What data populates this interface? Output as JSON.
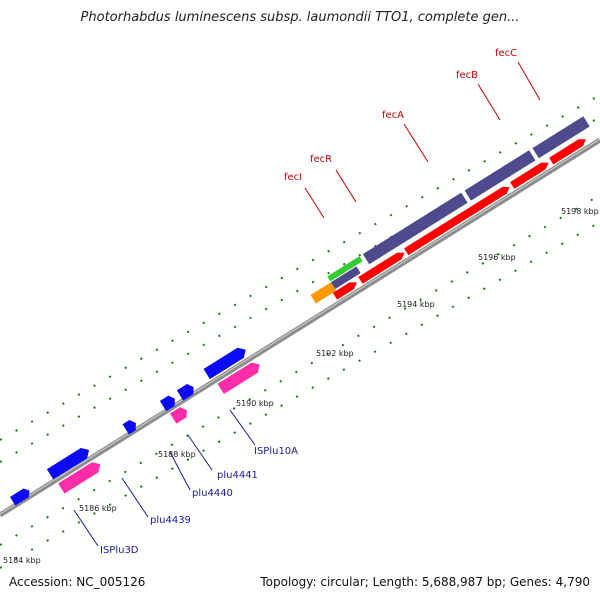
{
  "title": "Photorhabdus luminescens subsp. laumondii TTO1, complete gen...",
  "footer": {
    "accession": "Accession: NC_005126",
    "summary": "Topology: circular; Length: 5,688,987 bp; Genes: 4,790"
  },
  "scale_labels": [
    "5184 kbp",
    "5186 kbp",
    "5188 kbp",
    "5190 kbp",
    "5192 kbp",
    "5194 kbp",
    "5196 kbp",
    "5198 kbp"
  ],
  "gene_labels": {
    "fecI": "fecI",
    "fecR": "fecR",
    "fecA": "fecA",
    "fecB": "fecB",
    "fecC": "fecC",
    "ISPlu10A": "ISPlu10A",
    "plu4441": "plu4441",
    "plu4440": "plu4440",
    "plu4439": "plu4439",
    "ISPlu3D": "ISPlu3D"
  },
  "colors": {
    "backbone": "#8c8c8c",
    "cds_red": "#ff0000",
    "cds_pink": "#ff2ea8",
    "cds_blue": "#0a0af5",
    "gene_slate": "#4f4a8e",
    "gene_green": "#33cc33",
    "gene_orange": "#ff9900",
    "tick_green": "#1a7a1a"
  }
}
